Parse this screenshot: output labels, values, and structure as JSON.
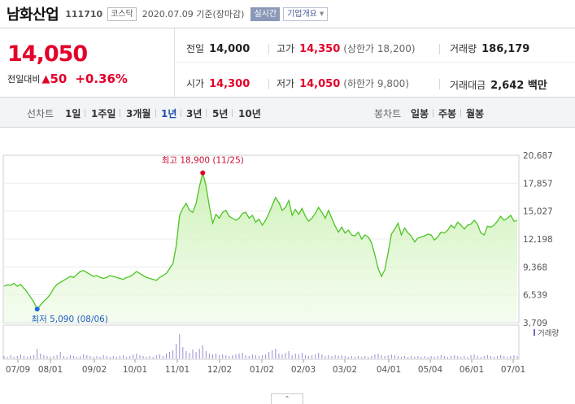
{
  "header": {
    "name": "남화산업",
    "code": "111710",
    "market": "코스닥",
    "date": "2020.07.09 기준(장마감)",
    "realtime": "실시간",
    "company_info": "기업개요"
  },
  "quote": {
    "price": "14,050",
    "change_label": "전일대비",
    "change": "50",
    "change_pct": "+0.36%",
    "prev_close_label": "전일",
    "prev_close": "14,000",
    "high_label": "고가",
    "high": "14,350",
    "upper_limit": "(상한가 18,200)",
    "volume_label": "거래량",
    "volume": "186,179",
    "open_label": "시가",
    "open": "14,300",
    "low_label": "저가",
    "low": "14,050",
    "lower_limit": "(하한가 9,800)",
    "amount_label": "거래대금",
    "amount": "2,642 백만"
  },
  "periods": {
    "line_label": "선차트",
    "items": [
      "1일",
      "1주일",
      "3개월",
      "1년",
      "3년",
      "5년",
      "10년"
    ],
    "active": "1년",
    "candle_label": "봉차트",
    "candle_items": [
      "일봉",
      "주봉",
      "월봉"
    ]
  },
  "colors": {
    "red": "#e3002a",
    "blue": "#1e6fd9",
    "line": "#4cc424",
    "fill_top": "#c9f0b0"
  },
  "chart_data": {
    "type": "area",
    "y_ticks": [
      "20,687",
      "17,857",
      "15,027",
      "12,198",
      "9,368",
      "6,539",
      "3,709"
    ],
    "ylim": [
      3709,
      20687
    ],
    "x_ticks": [
      "07/09",
      "08/01",
      "09/02",
      "10/01",
      "11/01",
      "12/02",
      "01/02",
      "02/03",
      "03/02",
      "04/01",
      "05/04",
      "06/01",
      "07/01"
    ],
    "max_label": "최고 18,900 (11/25)",
    "min_label": "최저 5,090 (08/06)",
    "volume_label": "거래량",
    "values": [
      7400,
      7550,
      7500,
      7700,
      7400,
      7600,
      7200,
      6800,
      6300,
      5800,
      5090,
      5500,
      5900,
      6200,
      6600,
      7200,
      7600,
      7800,
      8000,
      8200,
      8400,
      8300,
      8600,
      8900,
      9000,
      8800,
      8600,
      8400,
      8500,
      8300,
      8200,
      8300,
      8500,
      8400,
      8300,
      8200,
      8100,
      8300,
      8400,
      8600,
      8900,
      8700,
      8500,
      8300,
      8200,
      8100,
      8000,
      8300,
      8500,
      8700,
      9200,
      9700,
      11500,
      14600,
      15300,
      15800,
      15100,
      14900,
      15800,
      17500,
      18900,
      17600,
      15500,
      13800,
      14700,
      14300,
      14900,
      15100,
      14500,
      14300,
      14100,
      14300,
      14800,
      14900,
      14300,
      14600,
      13900,
      14200,
      13600,
      14100,
      14800,
      15600,
      16400,
      15900,
      15100,
      15400,
      16100,
      14600,
      15200,
      14700,
      15300,
      14500,
      14000,
      14300,
      14800,
      15400,
      14900,
      14300,
      15100,
      14300,
      13500,
      12900,
      13400,
      12800,
      13100,
      12600,
      12500,
      12900,
      12200,
      12600,
      12400,
      11800,
      10600,
      9200,
      8400,
      9100,
      10800,
      12700,
      13200,
      13800,
      12600,
      13300,
      12800,
      12500,
      11900,
      12300,
      12400,
      12500,
      12700,
      12600,
      12100,
      12400,
      12900,
      12800,
      13100,
      13600,
      13300,
      13900,
      13600,
      13200,
      13600,
      13700,
      14100,
      13700,
      12800,
      12600,
      13500,
      13400,
      13600,
      14000,
      14500,
      14100,
      14300,
      14600,
      14000,
      14050
    ]
  }
}
